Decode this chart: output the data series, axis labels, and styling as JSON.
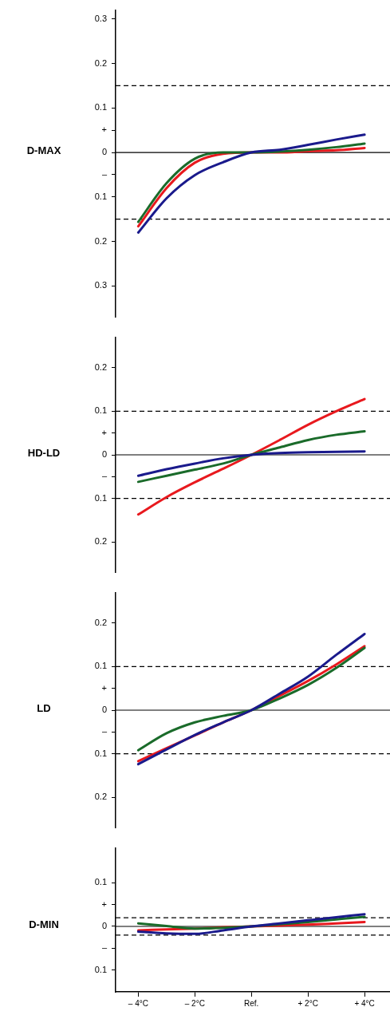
{
  "chart_data": [
    {
      "type": "line",
      "ylabel": "D-MAX",
      "x": [
        -4,
        -3,
        -2,
        -1,
        0,
        1,
        2,
        3,
        4
      ],
      "xlim": [
        -4.8,
        4.9
      ],
      "tick_labels": "y",
      "ylim": [
        -0.37,
        0.32
      ],
      "yticks": [
        0.3,
        0.2,
        0.1,
        {
          "value": 0.05,
          "label": "+"
        },
        0,
        {
          "value": -0.05,
          "label": "–"
        },
        {
          "value": -0.1,
          "label": "0.1"
        },
        {
          "value": -0.2,
          "label": "0.2"
        },
        {
          "value": -0.3,
          "label": "0.3"
        }
      ],
      "ref_lines": [
        {
          "axis": "y",
          "value": 0,
          "line_style": "solid",
          "color": "#000000"
        },
        {
          "axis": "y",
          "value": 0.15,
          "line_style": "dashed",
          "color": "#000000"
        },
        {
          "axis": "y",
          "value": -0.15,
          "line_style": "dashed",
          "color": "#000000"
        }
      ],
      "series": [
        {
          "color": "#1a1a8c",
          "values": [
            -0.18,
            -0.103,
            -0.051,
            -0.022,
            0,
            0.006,
            0.017,
            0.029,
            0.04
          ]
        },
        {
          "color": "#1a6b2a",
          "values": [
            -0.156,
            -0.069,
            -0.014,
            0,
            0,
            0.002,
            0.006,
            0.012,
            0.02
          ]
        },
        {
          "color": "#e8191e",
          "values": [
            -0.166,
            -0.08,
            -0.023,
            -0.003,
            0,
            0,
            0.003,
            0.005,
            0.01
          ]
        }
      ]
    },
    {
      "type": "line",
      "ylabel": "HD-LD",
      "x": [
        -4,
        -3,
        -2,
        -1,
        0,
        1,
        2,
        3,
        4
      ],
      "xlim": [
        -4.8,
        4.9
      ],
      "tick_labels": "y",
      "ylim": [
        -0.27,
        0.27
      ],
      "yticks": [
        0.2,
        0.1,
        {
          "value": 0.05,
          "label": "+"
        },
        0,
        {
          "value": -0.05,
          "label": "–"
        },
        {
          "value": -0.1,
          "label": "0.1"
        },
        {
          "value": -0.2,
          "label": "0.2"
        }
      ],
      "ref_lines": [
        {
          "axis": "y",
          "value": 0,
          "line_style": "solid",
          "color": "#000000"
        },
        {
          "axis": "y",
          "value": 0.1,
          "line_style": "dashed",
          "color": "#000000"
        },
        {
          "axis": "y",
          "value": -0.1,
          "line_style": "dashed",
          "color": "#000000"
        }
      ],
      "series": [
        {
          "color": "#1a1a8c",
          "values": [
            -0.048,
            -0.033,
            -0.02,
            -0.008,
            0,
            0.004,
            0.006,
            0.007,
            0.008
          ]
        },
        {
          "color": "#1a6b2a",
          "values": [
            -0.062,
            -0.048,
            -0.034,
            -0.02,
            0,
            0.017,
            0.034,
            0.046,
            0.054
          ]
        },
        {
          "color": "#e8191e",
          "values": [
            -0.137,
            -0.097,
            -0.063,
            -0.032,
            0,
            0.034,
            0.069,
            0.1,
            0.128
          ]
        }
      ]
    },
    {
      "type": "line",
      "ylabel": "LD",
      "x": [
        -4,
        -3,
        -2,
        -1,
        0,
        1,
        2,
        3,
        4
      ],
      "xlim": [
        -4.8,
        4.9
      ],
      "tick_labels": "y",
      "ylim": [
        -0.27,
        0.27
      ],
      "yticks": [
        0.2,
        0.1,
        {
          "value": 0.05,
          "label": "+"
        },
        0,
        {
          "value": -0.05,
          "label": "–"
        },
        {
          "value": -0.1,
          "label": "0.1"
        },
        {
          "value": -0.2,
          "label": "0.2"
        }
      ],
      "ref_lines": [
        {
          "axis": "y",
          "value": 0,
          "line_style": "solid",
          "color": "#000000"
        },
        {
          "axis": "y",
          "value": 0.1,
          "line_style": "dashed",
          "color": "#000000"
        },
        {
          "axis": "y",
          "value": -0.1,
          "line_style": "dashed",
          "color": "#000000"
        }
      ],
      "series": [
        {
          "color": "#1a1a8c",
          "values": [
            -0.124,
            -0.09,
            -0.057,
            -0.028,
            0,
            0.038,
            0.077,
            0.127,
            0.175
          ]
        },
        {
          "color": "#1a6b2a",
          "values": [
            -0.092,
            -0.053,
            -0.028,
            -0.013,
            0,
            0.027,
            0.058,
            0.097,
            0.143
          ]
        },
        {
          "color": "#e8191e",
          "values": [
            -0.117,
            -0.087,
            -0.058,
            -0.028,
            0,
            0.033,
            0.067,
            0.105,
            0.147
          ]
        }
      ]
    },
    {
      "type": "line",
      "ylabel": "D-MIN",
      "x": [
        -4,
        -3,
        -2,
        -1,
        0,
        1,
        2,
        3,
        4
      ],
      "xlim": [
        -4.8,
        4.9
      ],
      "xticks": [
        {
          "value": -4,
          "label": "– 4°C"
        },
        {
          "value": -2,
          "label": "– 2°C"
        },
        {
          "value": 0,
          "label": "Ref."
        },
        {
          "value": 2,
          "label": "+ 2°C"
        },
        {
          "value": 4,
          "label": "+ 4°C"
        }
      ],
      "ylim": [
        -0.15,
        0.18
      ],
      "yticks": [
        0.1,
        {
          "value": 0.05,
          "label": "+"
        },
        0,
        {
          "value": -0.05,
          "label": "–"
        },
        {
          "value": -0.1,
          "label": "0.1"
        }
      ],
      "ref_lines": [
        {
          "axis": "y",
          "value": 0,
          "line_style": "solid",
          "color": "#000000"
        },
        {
          "axis": "y",
          "value": 0.02,
          "line_style": "dashed",
          "color": "#000000"
        },
        {
          "axis": "y",
          "value": -0.02,
          "line_style": "dashed",
          "color": "#000000"
        }
      ],
      "series": [
        {
          "color": "#1a1a8c",
          "values": [
            -0.012,
            -0.016,
            -0.017,
            -0.009,
            0,
            0.007,
            0.014,
            0.021,
            0.028
          ]
        },
        {
          "color": "#1a6b2a",
          "values": [
            0.007,
            0.001,
            -0.005,
            -0.003,
            0,
            0.005,
            0.01,
            0.016,
            0.022
          ]
        },
        {
          "color": "#e8191e",
          "values": [
            -0.009,
            -0.007,
            -0.005,
            -0.002,
            0,
            0.002,
            0.004,
            0.007,
            0.01
          ]
        }
      ]
    }
  ]
}
